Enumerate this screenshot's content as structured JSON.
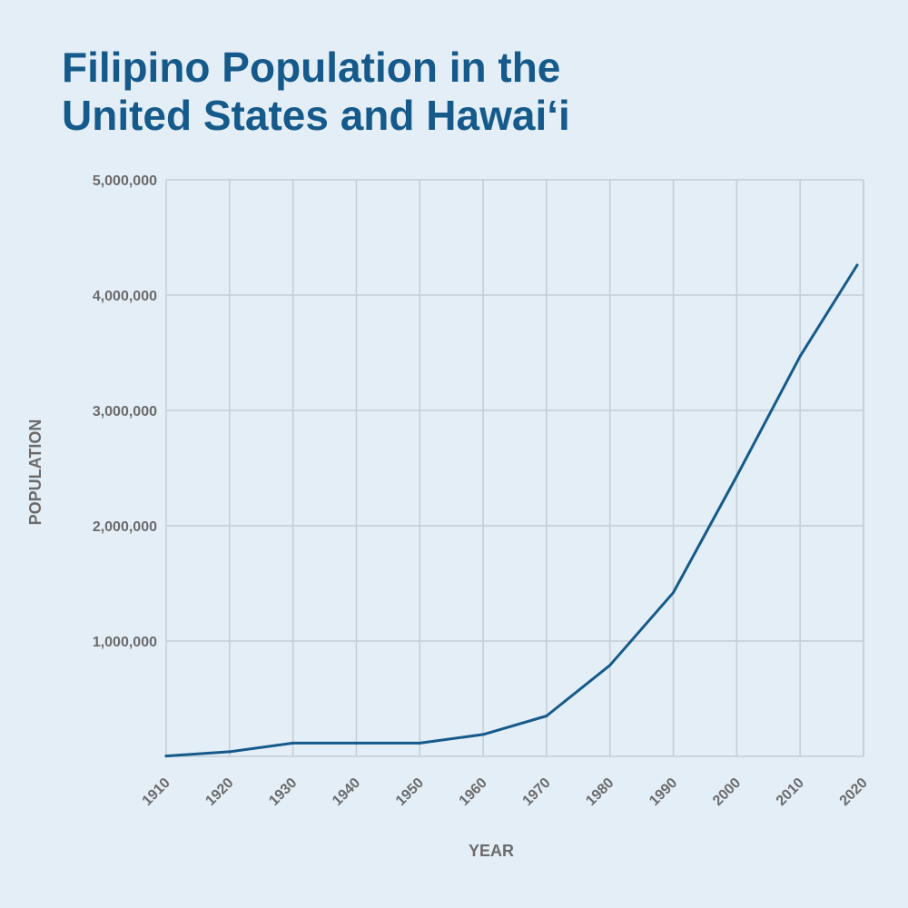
{
  "chart_data": {
    "type": "line",
    "title_lines": [
      "Filipino Population in the",
      "United States and Hawai‘i"
    ],
    "xlabel": "YEAR",
    "ylabel": "POPULATION",
    "x_ticks": [
      "1910",
      "1920",
      "1930",
      "1940",
      "1950",
      "1960",
      "1970",
      "1980",
      "1990",
      "2000",
      "2010",
      "2020"
    ],
    "y_ticks": [
      "1,000,000",
      "2,000,000",
      "3,000,000",
      "4,000,000",
      "5,000,000"
    ],
    "xlim": [
      1910,
      2020
    ],
    "ylim": [
      0,
      5000000
    ],
    "grid": true,
    "line_color": "#155a8a",
    "series": [
      {
        "x": [
          1910,
          1920,
          1930,
          1940,
          1950,
          1960,
          1970,
          1980,
          1990,
          2000,
          2010,
          2019
        ],
        "values": [
          3000,
          40000,
          115000,
          115000,
          115000,
          190000,
          350000,
          790000,
          1420000,
          2430000,
          3470000,
          4260000
        ]
      }
    ]
  }
}
